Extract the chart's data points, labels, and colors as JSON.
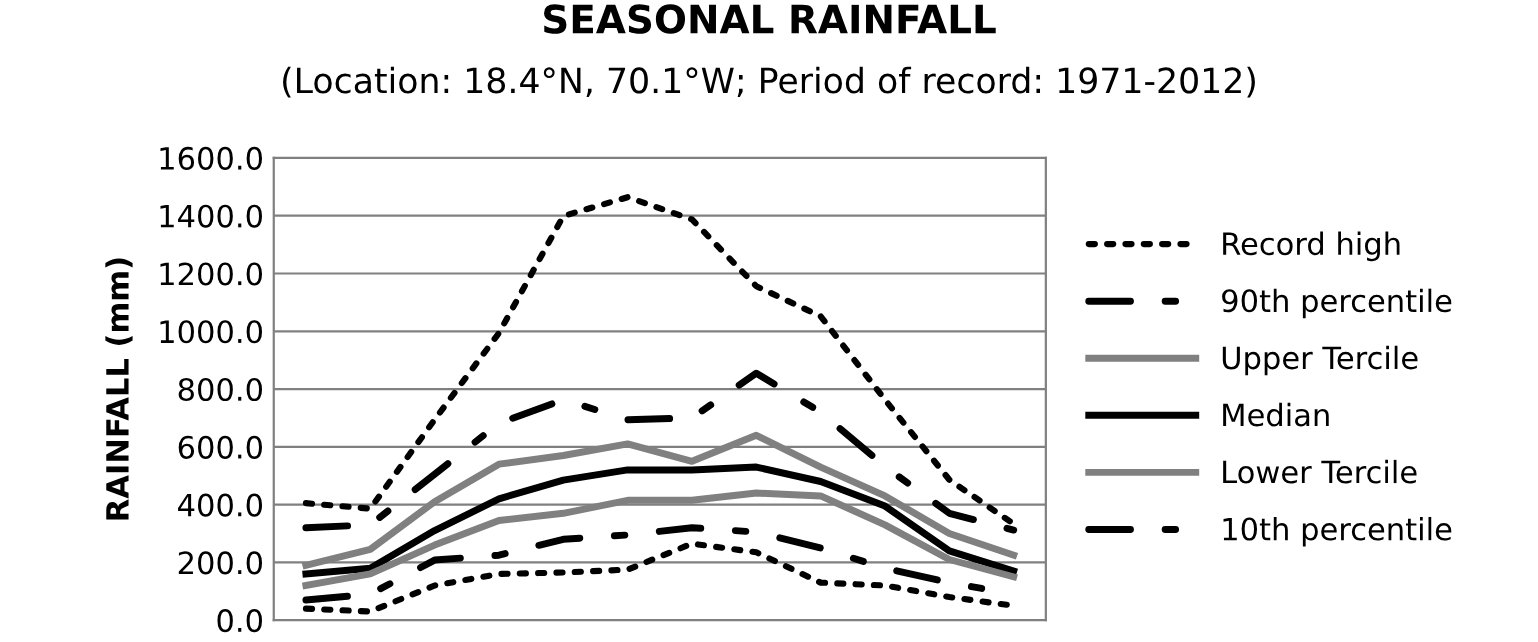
{
  "chart_data": {
    "type": "line",
    "title": "SEASONAL RAINFALL",
    "subtitle": "(Location: 18.4°N, 70.1°W; Period of record: 1971-2012)",
    "ylabel": "RAINFALL (mm)",
    "categories": [
      null,
      null,
      null,
      null,
      null,
      null,
      null,
      null,
      null,
      null,
      null,
      null
    ],
    "ylim": [
      0,
      1600
    ],
    "yticks": [
      {
        "value": 0,
        "label": "0.0"
      },
      {
        "value": 200,
        "label": "200.0"
      },
      {
        "value": 400,
        "label": "400.0"
      },
      {
        "value": 600,
        "label": "600.0"
      },
      {
        "value": 800,
        "label": "800.0"
      },
      {
        "value": 1000,
        "label": "1000.0"
      },
      {
        "value": 1200,
        "label": "1200.0"
      },
      {
        "value": 1400,
        "label": "1400.0"
      },
      {
        "value": 1600,
        "label": "1600.0"
      }
    ],
    "grid": "y",
    "legend": "right",
    "tick_labels": "y",
    "series": [
      {
        "name": "Record high",
        "color": "#000000",
        "line_style": "dotted",
        "values": [
          405,
          386,
          694,
          994,
          1399,
          1464,
          1387,
          1156,
          1052,
          763,
          486,
          333
        ]
      },
      {
        "name": "90th percentile",
        "color": "#000000",
        "line_style": "dashdot",
        "values": [
          320,
          330,
          505,
          682,
          763,
          694,
          700,
          855,
          720,
          532,
          370,
          312
        ]
      },
      {
        "name": "Upper Tercile",
        "color": "#808080",
        "line_style": "solid",
        "values": [
          190,
          245,
          410,
          540,
          570,
          610,
          550,
          640,
          530,
          430,
          300,
          225
        ]
      },
      {
        "name": "Median",
        "color": "#000000",
        "line_style": "solid",
        "values": [
          160,
          180,
          310,
          420,
          485,
          520,
          520,
          530,
          480,
          395,
          240,
          170
        ]
      },
      {
        "name": "Lower Tercile",
        "color": "#808080",
        "line_style": "solid",
        "values": [
          120,
          160,
          260,
          345,
          370,
          415,
          415,
          440,
          430,
          330,
          210,
          150
        ]
      },
      {
        "name": "10th percentile",
        "color": "#000000",
        "line_style": "dashdot",
        "values": [
          70,
          90,
          208,
          225,
          280,
          295,
          320,
          305,
          250,
          180,
          130,
          90
        ]
      },
      {
        "color": "#000000",
        "line_style": "dotted",
        "values": [
          40,
          30,
          120,
          160,
          165,
          175,
          265,
          235,
          130,
          120,
          80,
          50
        ]
      }
    ]
  }
}
